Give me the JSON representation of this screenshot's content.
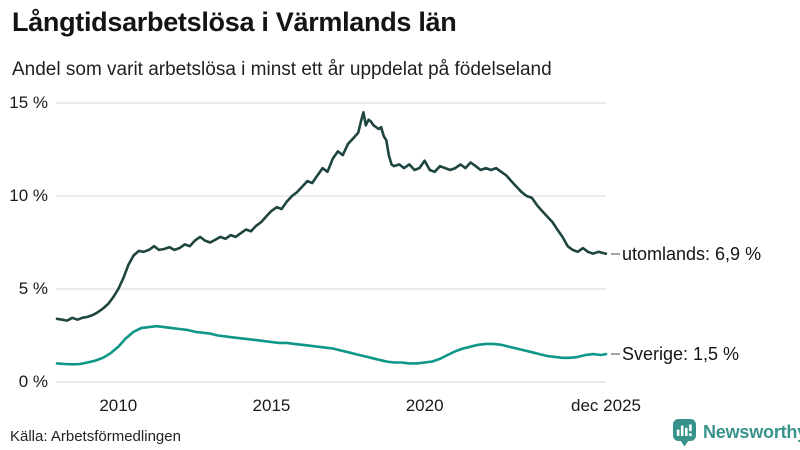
{
  "chart_data": {
    "type": "line",
    "title": "Långtidsarbetslösa i Värmlands län",
    "subtitle": "Andel som varit arbetslösa i minst ett år uppdelat på födelseland",
    "xlabel": "",
    "ylabel": "",
    "xlim": [
      2008.0,
      2025.92
    ],
    "ylim": [
      0,
      15
    ],
    "grid": "horizontal-only",
    "legend_position": "end-of-line-labels",
    "y_ticks": [
      {
        "value": 0,
        "label": "0 %"
      },
      {
        "value": 5,
        "label": "5 %"
      },
      {
        "value": 10,
        "label": "10 %"
      },
      {
        "value": 15,
        "label": "15 %"
      }
    ],
    "x_ticks": [
      {
        "value": 2010,
        "label": "2010"
      },
      {
        "value": 2015,
        "label": "2015"
      },
      {
        "value": 2020,
        "label": "2020"
      },
      {
        "value": 2025.92,
        "label": "dec 2025"
      }
    ],
    "colors": {
      "grid": "#e4e4ea",
      "axis_text": "#1a1a1a",
      "leader_dash": "#a3a3a3"
    },
    "series": [
      {
        "name": "utomlands",
        "label": "utomlands: 6,9 %",
        "color": "#1e453f",
        "x": [
          2008.0,
          2008.17,
          2008.33,
          2008.5,
          2008.67,
          2008.83,
          2009.0,
          2009.17,
          2009.33,
          2009.5,
          2009.67,
          2009.83,
          2010.0,
          2010.17,
          2010.33,
          2010.5,
          2010.67,
          2010.83,
          2011.0,
          2011.17,
          2011.33,
          2011.5,
          2011.67,
          2011.83,
          2012.0,
          2012.17,
          2012.33,
          2012.5,
          2012.67,
          2012.83,
          2013.0,
          2013.17,
          2013.33,
          2013.5,
          2013.67,
          2013.83,
          2014.0,
          2014.17,
          2014.33,
          2014.5,
          2014.67,
          2014.83,
          2015.0,
          2015.17,
          2015.33,
          2015.5,
          2015.67,
          2015.83,
          2016.0,
          2016.17,
          2016.33,
          2016.5,
          2016.67,
          2016.83,
          2017.0,
          2017.17,
          2017.33,
          2017.5,
          2017.67,
          2017.83,
          2017.92,
          2018.0,
          2018.08,
          2018.17,
          2018.25,
          2018.33,
          2018.5,
          2018.58,
          2018.67,
          2018.75,
          2018.83,
          2018.92,
          2019.0,
          2019.17,
          2019.33,
          2019.5,
          2019.67,
          2019.83,
          2020.0,
          2020.17,
          2020.33,
          2020.5,
          2020.67,
          2020.83,
          2021.0,
          2021.17,
          2021.33,
          2021.5,
          2021.67,
          2021.83,
          2022.0,
          2022.17,
          2022.33,
          2022.5,
          2022.67,
          2022.83,
          2023.0,
          2023.17,
          2023.33,
          2023.5,
          2023.67,
          2023.83,
          2024.0,
          2024.17,
          2024.33,
          2024.5,
          2024.67,
          2024.83,
          2025.0,
          2025.17,
          2025.33,
          2025.5,
          2025.67,
          2025.92
        ],
        "y": [
          3.4,
          3.35,
          3.3,
          3.45,
          3.35,
          3.45,
          3.5,
          3.6,
          3.75,
          3.95,
          4.2,
          4.55,
          5.0,
          5.6,
          6.3,
          6.8,
          7.05,
          7.0,
          7.1,
          7.3,
          7.1,
          7.15,
          7.25,
          7.1,
          7.2,
          7.4,
          7.3,
          7.6,
          7.8,
          7.6,
          7.5,
          7.65,
          7.8,
          7.7,
          7.9,
          7.8,
          8.0,
          8.2,
          8.1,
          8.4,
          8.6,
          8.9,
          9.2,
          9.4,
          9.3,
          9.7,
          10.0,
          10.2,
          10.5,
          10.8,
          10.7,
          11.1,
          11.5,
          11.3,
          12.0,
          12.4,
          12.2,
          12.8,
          13.1,
          13.4,
          14.0,
          14.5,
          13.8,
          14.1,
          14.0,
          13.8,
          13.6,
          13.7,
          13.2,
          13.0,
          12.2,
          11.7,
          11.6,
          11.7,
          11.5,
          11.7,
          11.4,
          11.5,
          11.9,
          11.4,
          11.3,
          11.6,
          11.5,
          11.4,
          11.5,
          11.7,
          11.5,
          11.8,
          11.6,
          11.4,
          11.5,
          11.4,
          11.5,
          11.3,
          11.1,
          10.8,
          10.5,
          10.2,
          10.0,
          9.9,
          9.5,
          9.2,
          8.9,
          8.6,
          8.2,
          7.8,
          7.3,
          7.1,
          7.0,
          7.2,
          7.0,
          6.9,
          7.0,
          6.9
        ]
      },
      {
        "name": "Sverige",
        "label": "Sverige: 1,5 %",
        "color": "#0e9688",
        "x": [
          2008.0,
          2008.25,
          2008.5,
          2008.75,
          2009.0,
          2009.25,
          2009.5,
          2009.75,
          2010.0,
          2010.25,
          2010.5,
          2010.75,
          2011.0,
          2011.25,
          2011.5,
          2011.75,
          2012.0,
          2012.25,
          2012.5,
          2012.75,
          2013.0,
          2013.25,
          2013.5,
          2013.75,
          2014.0,
          2014.25,
          2014.5,
          2014.75,
          2015.0,
          2015.25,
          2015.5,
          2015.75,
          2016.0,
          2016.25,
          2016.5,
          2016.75,
          2017.0,
          2017.25,
          2017.5,
          2017.75,
          2018.0,
          2018.25,
          2018.5,
          2018.75,
          2019.0,
          2019.25,
          2019.5,
          2019.75,
          2020.0,
          2020.25,
          2020.5,
          2020.75,
          2021.0,
          2021.25,
          2021.5,
          2021.75,
          2022.0,
          2022.25,
          2022.5,
          2022.75,
          2023.0,
          2023.25,
          2023.5,
          2023.75,
          2024.0,
          2024.25,
          2024.5,
          2024.75,
          2025.0,
          2025.25,
          2025.5,
          2025.75,
          2025.92
        ],
        "y": [
          1.0,
          0.97,
          0.95,
          0.97,
          1.05,
          1.15,
          1.3,
          1.55,
          1.9,
          2.35,
          2.7,
          2.9,
          2.95,
          3.0,
          2.95,
          2.9,
          2.85,
          2.8,
          2.7,
          2.65,
          2.6,
          2.5,
          2.45,
          2.4,
          2.35,
          2.3,
          2.25,
          2.2,
          2.15,
          2.1,
          2.1,
          2.05,
          2.0,
          1.95,
          1.9,
          1.85,
          1.8,
          1.7,
          1.6,
          1.5,
          1.4,
          1.3,
          1.2,
          1.1,
          1.05,
          1.05,
          1.0,
          1.0,
          1.05,
          1.1,
          1.25,
          1.45,
          1.65,
          1.8,
          1.9,
          2.0,
          2.05,
          2.05,
          2.0,
          1.9,
          1.8,
          1.7,
          1.6,
          1.5,
          1.4,
          1.35,
          1.3,
          1.3,
          1.35,
          1.45,
          1.5,
          1.45,
          1.5
        ]
      }
    ]
  },
  "footer": {
    "source": "Källa: Arbetsförmedlingen",
    "brand": {
      "name": "Newsworthy",
      "color": "#38928c"
    }
  }
}
